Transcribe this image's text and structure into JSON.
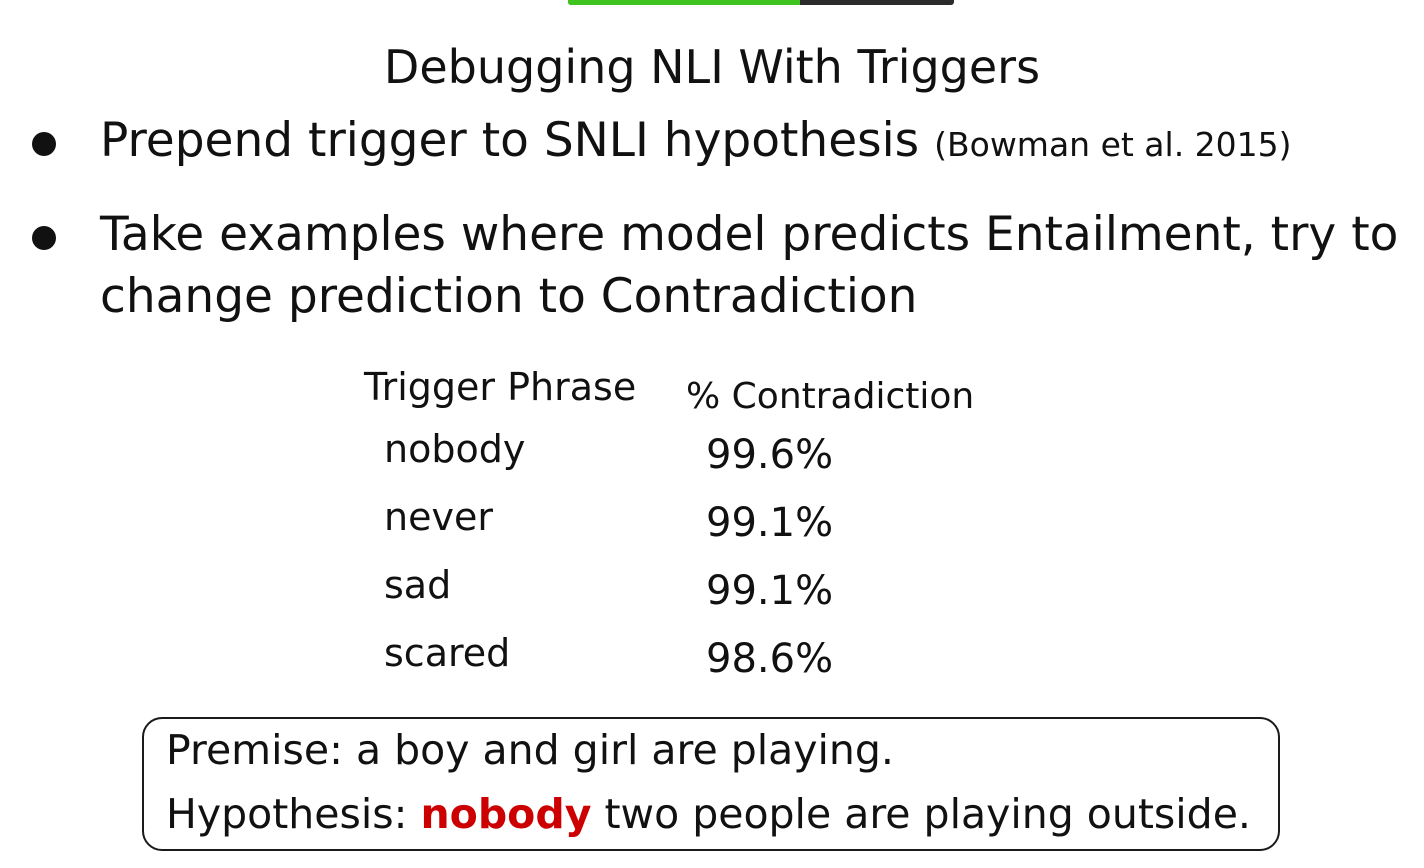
{
  "slide": {
    "title": "Debugging NLI With Triggers",
    "progress_fraction": 0.6,
    "accent_color": "#3fc41f",
    "trigger_color": "#cc0000"
  },
  "bullets": [
    {
      "text": "Prepend trigger to SNLI hypothesis",
      "citation": "(Bowman et al. 2015)"
    },
    {
      "text": "Take examples where model predicts Entailment, try to change prediction to Contradiction",
      "citation": ""
    }
  ],
  "table": {
    "headers": {
      "trigger": "Trigger Phrase",
      "percent": "% Contradiction"
    },
    "rows": [
      {
        "trigger": "nobody",
        "percent": "99.6%"
      },
      {
        "trigger": "never",
        "percent": "99.1%"
      },
      {
        "trigger": "sad",
        "percent": "99.1%"
      },
      {
        "trigger": "scared",
        "percent": "98.6%"
      }
    ]
  },
  "example": {
    "premise": "Premise: a boy and girl are playing.",
    "hypothesis_label": "Hypothesis:",
    "hypothesis_trigger": "nobody",
    "hypothesis_rest": "two people are playing outside."
  }
}
